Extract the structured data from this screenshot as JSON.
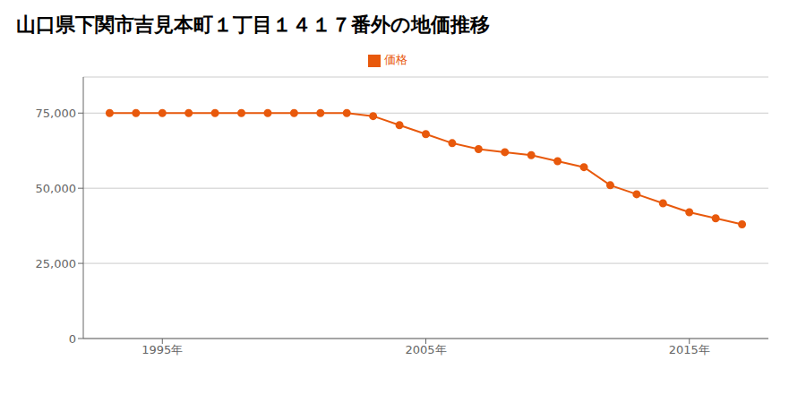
{
  "chart_data": {
    "type": "line",
    "title": "山口県下関市吉見本町１丁目１４１７番外の地価推移",
    "x": [
      1993,
      1994,
      1995,
      1996,
      1997,
      1998,
      1999,
      2000,
      2001,
      2002,
      2003,
      2004,
      2005,
      2006,
      2007,
      2008,
      2009,
      2010,
      2011,
      2012,
      2013,
      2014,
      2015,
      2016,
      2017
    ],
    "series": [
      {
        "name": "価格",
        "color": "#e8590c",
        "marker": "circle",
        "values": [
          75000,
          75000,
          75000,
          75000,
          75000,
          75000,
          75000,
          75000,
          75000,
          75000,
          74000,
          71000,
          68000,
          65000,
          63000,
          62000,
          61000,
          59000,
          57000,
          51000,
          48000,
          45000,
          42000,
          40000,
          38000
        ]
      }
    ],
    "xlim": [
      1992,
      2018
    ],
    "xticks": [
      {
        "value": 1995,
        "label": "1995年"
      },
      {
        "value": 2005,
        "label": "2005年"
      },
      {
        "value": 2015,
        "label": "2015年"
      }
    ],
    "ylim": [
      0,
      87000
    ],
    "yticks": [
      0,
      {
        "value": 25000,
        "label": "25,000"
      },
      {
        "value": 50000,
        "label": "50,000"
      },
      {
        "value": 75000,
        "label": "75,000"
      }
    ],
    "grid": true,
    "legend": "top"
  }
}
